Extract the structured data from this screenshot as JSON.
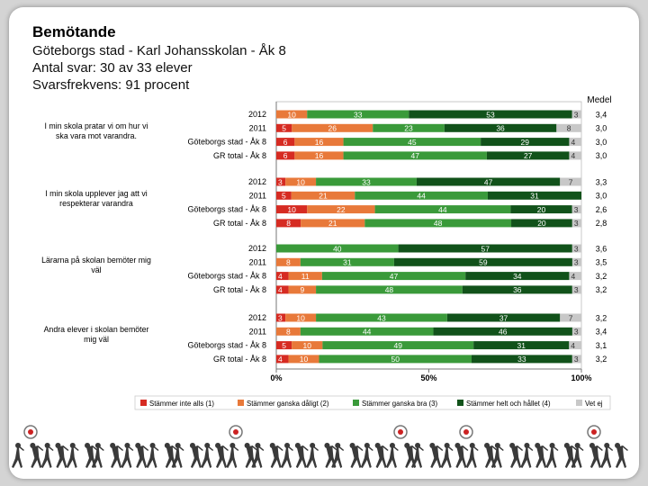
{
  "header": {
    "title": "Bemötande",
    "subtitle_lines": [
      "Göteborgs stad - Karl Johansskolan - Åk 8",
      "Antal svar: 30 av 33 elever",
      "Svarsfrekvens: 91 procent"
    ]
  },
  "chart_data": {
    "type": "bar",
    "orientation": "horizontal-stacked-100",
    "mean_header": "Medel",
    "x_ticks": [
      "0%",
      "50%",
      "100%"
    ],
    "series": [
      {
        "name": "Stämmer inte alls (1)",
        "color": "#d62b22"
      },
      {
        "name": "Stämmer ganska dåligt (2)",
        "color": "#e8793a"
      },
      {
        "name": "Stämmer ganska bra (3)",
        "color": "#3a9a3a"
      },
      {
        "name": "Stämmer helt och hållet (4)",
        "color": "#11521a"
      },
      {
        "name": "Vet ej",
        "color": "#c8c8c8"
      }
    ],
    "groups": [
      {
        "question": "I min skola pratar vi om hur vi ska vara mot varandra.",
        "rows": [
          {
            "label": "2012",
            "values": [
              0,
              10,
              33,
              53,
              3
            ],
            "labels": [
              "",
              "10",
              "33",
              "53",
              "3"
            ],
            "mean": "3,4"
          },
          {
            "label": "2011",
            "values": [
              5,
              26,
              23,
              36,
              8
            ],
            "labels": [
              "5",
              "26",
              "23",
              "36",
              "8"
            ],
            "mean": "3,0"
          },
          {
            "label": "Göteborgs stad - Åk 8",
            "values": [
              6,
              16,
              45,
              29,
              4
            ],
            "labels": [
              "6",
              "16",
              "45",
              "29",
              "4"
            ],
            "mean": "3,0"
          },
          {
            "label": "GR total - Åk 8",
            "values": [
              6,
              16,
              47,
              27,
              4
            ],
            "labels": [
              "6",
              "16",
              "47",
              "27",
              "4"
            ],
            "mean": "3,0"
          }
        ]
      },
      {
        "question": "I min skola upplever jag att vi respekterar varandra",
        "rows": [
          {
            "label": "2012",
            "values": [
              3,
              10,
              33,
              47,
              7
            ],
            "labels": [
              "3",
              "10",
              "33",
              "47",
              "7"
            ],
            "mean": "3,3"
          },
          {
            "label": "2011",
            "values": [
              5,
              21,
              44,
              31,
              0
            ],
            "labels": [
              "5",
              "21",
              "44",
              "31",
              ""
            ],
            "mean": "3,0"
          },
          {
            "label": "Göteborgs stad - Åk 8",
            "values": [
              10,
              22,
              44,
              20,
              3
            ],
            "labels": [
              "10",
              "22",
              "44",
              "20",
              "3"
            ],
            "mean": "2,6"
          },
          {
            "label": "GR total - Åk 8",
            "values": [
              8,
              21,
              48,
              20,
              3
            ],
            "labels": [
              "8",
              "21",
              "48",
              "20",
              "3"
            ],
            "mean": "2,8"
          }
        ]
      },
      {
        "question": "Lärarna på skolan bemöter mig väl",
        "rows": [
          {
            "label": "2012",
            "values": [
              0,
              0,
              40,
              57,
              3
            ],
            "labels": [
              "",
              "",
              "40",
              "57",
              "3"
            ],
            "mean": "3,6"
          },
          {
            "label": "2011",
            "values": [
              0,
              8,
              31,
              59,
              3
            ],
            "labels": [
              "",
              "8",
              "31",
              "59",
              "3"
            ],
            "mean": "3,5"
          },
          {
            "label": "Göteborgs stad - Åk 8",
            "values": [
              4,
              11,
              47,
              34,
              4
            ],
            "labels": [
              "4",
              "11",
              "47",
              "34",
              "4"
            ],
            "mean": "3,2"
          },
          {
            "label": "GR total - Åk 8",
            "values": [
              4,
              9,
              48,
              36,
              3
            ],
            "labels": [
              "4",
              "9",
              "48",
              "36",
              "3"
            ],
            "mean": "3,2"
          }
        ]
      },
      {
        "question": "Andra elever i skolan bemöter mig väl",
        "rows": [
          {
            "label": "2012",
            "values": [
              3,
              10,
              43,
              37,
              7
            ],
            "labels": [
              "3",
              "10",
              "43",
              "37",
              "7"
            ],
            "mean": "3,2"
          },
          {
            "label": "2011",
            "values": [
              0,
              8,
              44,
              46,
              3
            ],
            "labels": [
              "",
              "8",
              "44",
              "46",
              "3"
            ],
            "mean": "3,4"
          },
          {
            "label": "Göteborgs stad - Åk 8",
            "values": [
              5,
              10,
              49,
              31,
              4
            ],
            "labels": [
              "5",
              "10",
              "49",
              "31",
              "4"
            ],
            "mean": "3,1"
          },
          {
            "label": "GR total - Åk 8",
            "values": [
              4,
              10,
              50,
              33,
              3
            ],
            "labels": [
              "4",
              "10",
              "50",
              "33",
              "3"
            ],
            "mean": "3,2"
          }
        ]
      }
    ]
  }
}
